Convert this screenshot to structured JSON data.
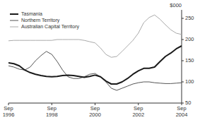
{
  "chart_data": {
    "type": "line",
    "ylabel": "$000",
    "categories": [
      "Sep\n1996",
      null,
      null,
      null,
      null,
      null,
      null,
      null,
      "Sep\n1998",
      null,
      null,
      null,
      null,
      null,
      null,
      null,
      "Sep\n2000",
      null,
      null,
      null,
      null,
      null,
      null,
      null,
      "Sep\n2002",
      null,
      null,
      null,
      null,
      null,
      null,
      null,
      "Sep\n2004"
    ],
    "series": [
      {
        "name": "Tasmania",
        "color": "#1a1a1a",
        "values": [
          145,
          143,
          138,
          128,
          122,
          118,
          115,
          113,
          112,
          113,
          115,
          116,
          115,
          113,
          111,
          113,
          116,
          112,
          102,
          95,
          95,
          100,
          108,
          118,
          126,
          132,
          132,
          135,
          148,
          160,
          168,
          178,
          185
        ]
      },
      {
        "name": "Northern Territory",
        "color": "#555555",
        "values": [
          138,
          135,
          130,
          128,
          135,
          150,
          162,
          172,
          165,
          148,
          128,
          112,
          108,
          108,
          112,
          118,
          120,
          112,
          100,
          85,
          80,
          85,
          90,
          95,
          98,
          100,
          100,
          98,
          97,
          96,
          96,
          97,
          98
        ]
      },
      {
        "name": "Australian Capital Territory",
        "color": "#aaaaaa",
        "values": [
          197,
          198,
          198,
          198,
          198,
          198,
          198,
          198,
          198,
          200,
          200,
          200,
          200,
          200,
          198,
          195,
          192,
          180,
          165,
          158,
          160,
          172,
          185,
          198,
          215,
          240,
          252,
          258,
          248,
          235,
          223,
          215,
          212
        ]
      }
    ],
    "ylim": [
      50,
      270
    ],
    "yticks": [
      50,
      100,
      150,
      200,
      250
    ],
    "grid": false,
    "legend": "upper left"
  }
}
